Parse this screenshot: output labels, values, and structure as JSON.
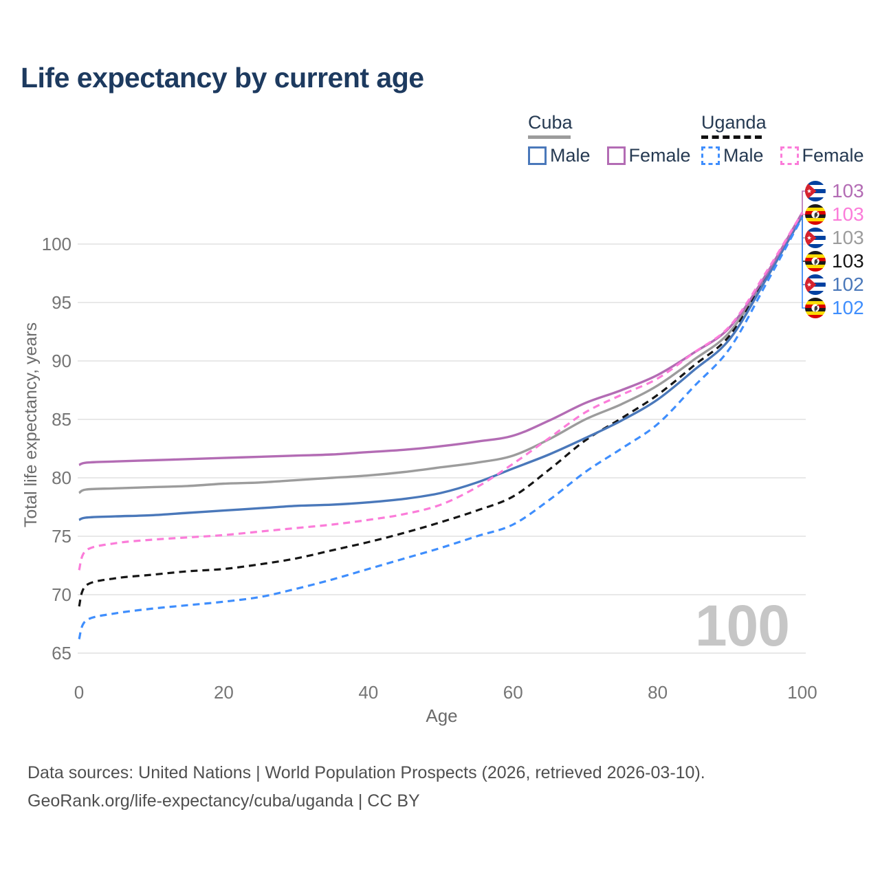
{
  "title": "Life expectancy by current age",
  "colors": {
    "title": "#1d3a5f",
    "legend_text": "#263a52",
    "axis_text": "#757575",
    "axis_title": "#6b6b6b",
    "gridline": "#e8e8e8",
    "watermark": "#c6c6c6",
    "footer": "#4f4f4f"
  },
  "legend": {
    "groups": [
      {
        "name": "Cuba",
        "underline_style": "solid",
        "underline_color": "#9c9c9c",
        "items": [
          {
            "label": "Male",
            "color": "#4a78ba",
            "dashed": false
          },
          {
            "label": "Female",
            "color": "#b36cb4",
            "dashed": false
          }
        ]
      },
      {
        "name": "Uganda",
        "underline_style": "dashed",
        "underline_color": "#111111",
        "items": [
          {
            "label": "Male",
            "color": "#3f8efd",
            "dashed": true
          },
          {
            "label": "Female",
            "color": "#fb7cd9",
            "dashed": true
          }
        ]
      }
    ]
  },
  "chart_data": {
    "type": "line",
    "title": "Life expectancy by current age",
    "xlabel": "Age",
    "ylabel": "Total life expectancy, years",
    "xlim": [
      0,
      100
    ],
    "ylim": [
      65,
      103.5
    ],
    "xticks": [
      0,
      20,
      40,
      60,
      80,
      100
    ],
    "yticks": [
      65,
      70,
      75,
      80,
      85,
      90,
      95,
      100
    ],
    "grid": "horizontal-only",
    "legend_position": "top-right",
    "x": [
      0,
      1,
      5,
      10,
      15,
      20,
      25,
      30,
      35,
      40,
      45,
      50,
      55,
      60,
      65,
      70,
      75,
      80,
      85,
      90,
      95,
      100
    ],
    "series": [
      {
        "name": "Cuba Male",
        "country": "Cuba",
        "sex": "male",
        "style": "solid",
        "color": "#4a78ba",
        "values": [
          76.4,
          76.6,
          76.7,
          76.8,
          77.0,
          77.2,
          77.4,
          77.6,
          77.7,
          77.9,
          78.2,
          78.7,
          79.6,
          80.8,
          82.0,
          83.4,
          84.9,
          86.7,
          89.2,
          91.9,
          97.0,
          102.4
        ]
      },
      {
        "name": "Cuba Female",
        "country": "Cuba",
        "sex": "female",
        "style": "solid",
        "color": "#b36cb4",
        "values": [
          81.1,
          81.3,
          81.4,
          81.5,
          81.6,
          81.7,
          81.8,
          81.9,
          82.0,
          82.2,
          82.4,
          82.7,
          83.1,
          83.6,
          84.9,
          86.4,
          87.5,
          88.8,
          90.7,
          92.9,
          97.4,
          102.7
        ]
      },
      {
        "name": "Cuba",
        "country": "Cuba",
        "sex": "both",
        "style": "solid",
        "color": "#9c9c9c",
        "values": [
          78.7,
          79.0,
          79.1,
          79.2,
          79.3,
          79.5,
          79.6,
          79.8,
          80.0,
          80.2,
          80.5,
          80.9,
          81.3,
          81.9,
          83.3,
          85.0,
          86.3,
          87.9,
          90.1,
          92.5,
          97.2,
          102.6
        ]
      },
      {
        "name": "Uganda Male",
        "country": "Uganda",
        "sex": "male",
        "style": "dashed",
        "color": "#3f8efd",
        "values": [
          66.2,
          67.8,
          68.4,
          68.8,
          69.1,
          69.4,
          69.8,
          70.5,
          71.3,
          72.2,
          73.1,
          74.0,
          75.0,
          76.0,
          78.1,
          80.5,
          82.5,
          84.6,
          87.8,
          91.1,
          96.6,
          102.3
        ]
      },
      {
        "name": "Uganda Female",
        "country": "Uganda",
        "sex": "female",
        "style": "dashed",
        "color": "#fb7cd9",
        "values": [
          72.1,
          73.8,
          74.4,
          74.7,
          74.9,
          75.1,
          75.4,
          75.7,
          76.0,
          76.4,
          76.9,
          77.7,
          79.2,
          81.2,
          83.4,
          85.6,
          87.1,
          88.5,
          90.7,
          93.0,
          97.6,
          102.7
        ]
      },
      {
        "name": "Uganda",
        "country": "Uganda",
        "sex": "both",
        "style": "dashed",
        "color": "#161616",
        "values": [
          69.0,
          70.8,
          71.4,
          71.7,
          72.0,
          72.2,
          72.6,
          73.1,
          73.8,
          74.5,
          75.3,
          76.2,
          77.2,
          78.4,
          80.7,
          83.2,
          85.1,
          87.1,
          89.6,
          92.2,
          97.2,
          102.6
        ]
      }
    ]
  },
  "end_labels": [
    {
      "flag": "cuba",
      "series": "Cuba Female",
      "value": "103",
      "color": "#b36cb4"
    },
    {
      "flag": "uganda",
      "series": "Uganda Female",
      "value": "103",
      "color": "#fb7cd9"
    },
    {
      "flag": "cuba",
      "series": "Cuba",
      "value": "103",
      "color": "#9c9c9c"
    },
    {
      "flag": "uganda",
      "series": "Uganda",
      "value": "103",
      "color": "#161616"
    },
    {
      "flag": "cuba",
      "series": "Cuba Male",
      "value": "102",
      "color": "#4a78ba"
    },
    {
      "flag": "uganda",
      "series": "Uganda Male",
      "value": "102",
      "color": "#3f8efd"
    }
  ],
  "watermark": "100",
  "footer": {
    "line1": "Data sources: United Nations | World Population Prospects (2026, retrieved 2026-03-10).",
    "line2": "GeoRank.org/life-expectancy/cuba/uganda | CC BY"
  }
}
